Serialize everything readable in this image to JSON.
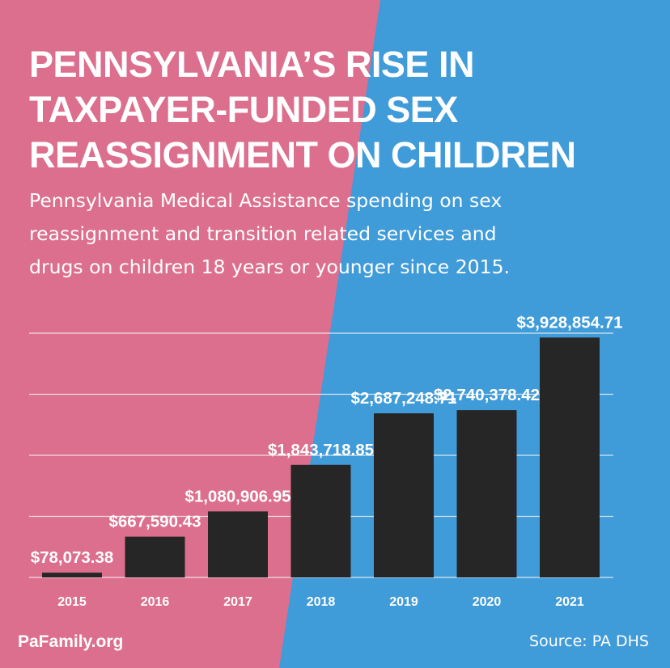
{
  "colors": {
    "pink": "#dc6f8e",
    "blue": "#409bd9",
    "bar": "#262626",
    "text": "#ffffff",
    "grid": "#f2f2f2"
  },
  "title_lines": [
    "PENNSYLVANIA’S RISE IN",
    "TAXPAYER-FUNDED SEX",
    "REASSIGNMENT ON CHILDREN"
  ],
  "subtitle_lines": [
    "Pennsylvania Medical Assistance spending on sex",
    "reassignment and transition related services and",
    "drugs on children 18 years or younger since 2015."
  ],
  "chart_data": {
    "type": "bar",
    "title": "PENNSYLVANIA’S RISE IN TAXPAYER-FUNDED SEX REASSIGNMENT ON CHILDREN",
    "xlabel": "",
    "ylabel": "",
    "categories": [
      "2015",
      "2016",
      "2017",
      "2018",
      "2019",
      "2020",
      "2021"
    ],
    "values": [
      78073.38,
      667590.43,
      1080906.95,
      1843718.85,
      2687248.71,
      2740378.42,
      3928854.71
    ],
    "value_labels": [
      "$78,073.38",
      "$667,590.43",
      "$1,080,906.95",
      "$1,843,718.85",
      "$2,687,248.71",
      "$2,740,378.42",
      "$3,928,854.71"
    ],
    "ylim": [
      0,
      4000000
    ],
    "gridlines": [
      0,
      1000000,
      2000000,
      3000000,
      4000000
    ],
    "grid": true,
    "legend": "none"
  },
  "footer": {
    "brand": "PaFamily.org",
    "source": "Source: PA DHS"
  }
}
